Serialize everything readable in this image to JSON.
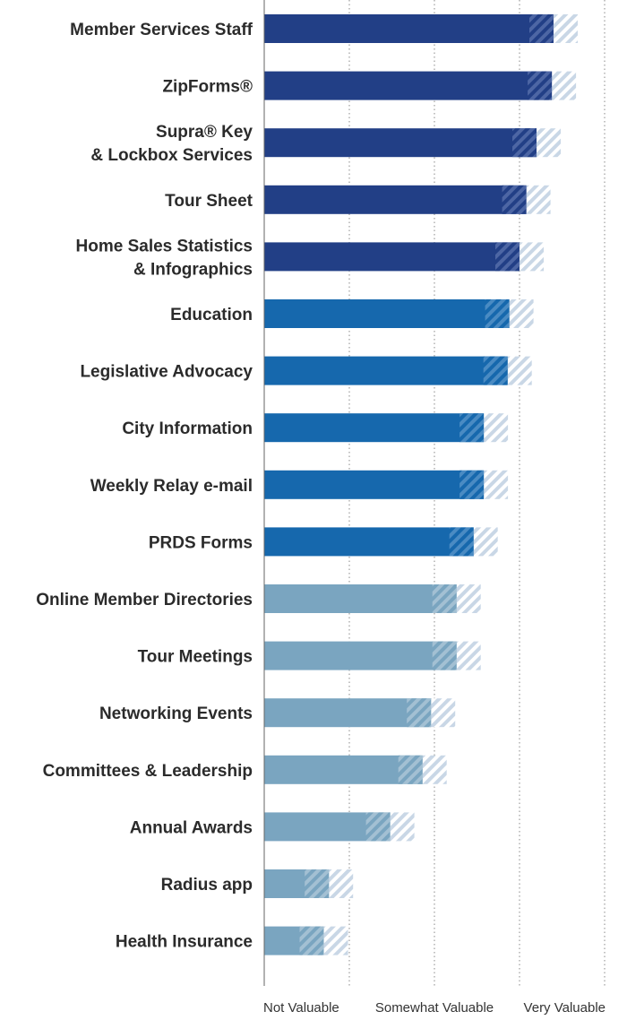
{
  "chart_data": {
    "type": "bar",
    "orientation": "horizontal",
    "title": "",
    "xlabel": "",
    "ylabel": "",
    "xlim": [
      0,
      2
    ],
    "grid": "dotted vertical",
    "x_ticks": [
      {
        "value": 0,
        "label": "Not Valuable"
      },
      {
        "value": 1,
        "label": "Somewhat Valuable"
      },
      {
        "value": 2,
        "label": "Very Valuable"
      }
    ],
    "categories": [
      {
        "label": [
          "Member Services Staff"
        ],
        "value": 1.7,
        "tier": "top"
      },
      {
        "label": [
          "ZipForms®"
        ],
        "value": 1.69,
        "tier": "top"
      },
      {
        "label": [
          "Supra® Key",
          "& Lockbox Services"
        ],
        "value": 1.6,
        "tier": "top"
      },
      {
        "label": [
          "Tour Sheet"
        ],
        "value": 1.54,
        "tier": "top"
      },
      {
        "label": [
          "Home Sales Statistics",
          "& Infographics"
        ],
        "value": 1.5,
        "tier": "top"
      },
      {
        "label": [
          "Education"
        ],
        "value": 1.44,
        "tier": "mid"
      },
      {
        "label": [
          "Legislative Advocacy"
        ],
        "value": 1.43,
        "tier": "mid"
      },
      {
        "label": [
          "City Information"
        ],
        "value": 1.29,
        "tier": "mid"
      },
      {
        "label": [
          "Weekly Relay e-mail"
        ],
        "value": 1.29,
        "tier": "mid"
      },
      {
        "label": [
          "PRDS Forms"
        ],
        "value": 1.23,
        "tier": "mid"
      },
      {
        "label": [
          "Online Member Directories"
        ],
        "value": 1.13,
        "tier": "low"
      },
      {
        "label": [
          "Tour Meetings"
        ],
        "value": 1.13,
        "tier": "low"
      },
      {
        "label": [
          "Networking Events"
        ],
        "value": 0.98,
        "tier": "low"
      },
      {
        "label": [
          "Committees & Leadership"
        ],
        "value": 0.93,
        "tier": "low"
      },
      {
        "label": [
          "Annual Awards"
        ],
        "value": 0.74,
        "tier": "low"
      },
      {
        "label": [
          "Radius app"
        ],
        "value": 0.38,
        "tier": "low"
      },
      {
        "label": [
          "Health Insurance"
        ],
        "value": 0.35,
        "tier": "low"
      }
    ],
    "colors": {
      "top": "#223f86",
      "mid": "#1668ad",
      "low": "#7aa5c0",
      "hatch_light": "#c9d7e6",
      "axis": "#666666"
    }
  }
}
